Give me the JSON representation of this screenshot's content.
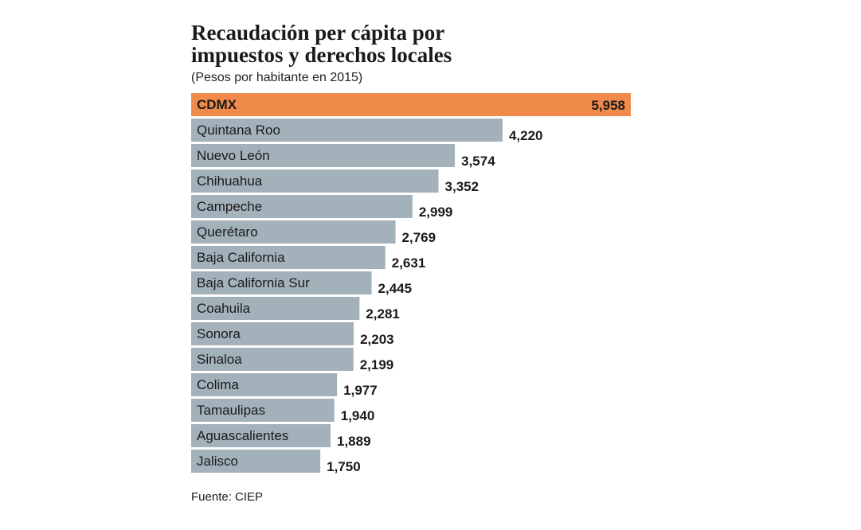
{
  "chart_data": {
    "type": "bar",
    "orientation": "horizontal",
    "title": [
      "Recaudación per cápita por",
      "impuestos y derechos locales"
    ],
    "subtitle": "(Pesos por habitante en 2015)",
    "source": "Fuente: CIEP",
    "categories": [
      "CDMX",
      "Quintana Roo",
      "Nuevo León",
      "Chihuahua",
      "Campeche",
      "Querétaro",
      "Baja California",
      "Baja California Sur",
      "Coahuila",
      "Sonora",
      "Sinaloa",
      "Colima",
      "Tamaulipas",
      "Aguascalientes",
      "Jalisco"
    ],
    "values": [
      5958,
      4220,
      3574,
      3352,
      2999,
      2769,
      2631,
      2445,
      2281,
      2203,
      2199,
      1977,
      1940,
      1889,
      1750
    ],
    "value_labels": [
      "5,958",
      "4,220",
      "3,574",
      "3,352",
      "2,999",
      "2,769",
      "2,631",
      "2,445",
      "2,281",
      "2,203",
      "2,199",
      "1,977",
      "1,940",
      "1,889",
      "1,750"
    ],
    "colors": [
      "#f08a4b",
      "#a3b1bb",
      "#a3b1bb",
      "#a3b1bb",
      "#a3b1bb",
      "#a3b1bb",
      "#a3b1bb",
      "#a3b1bb",
      "#a3b1bb",
      "#a3b1bb",
      "#a3b1bb",
      "#a3b1bb",
      "#a3b1bb",
      "#a3b1bb",
      "#a3b1bb"
    ]
  }
}
